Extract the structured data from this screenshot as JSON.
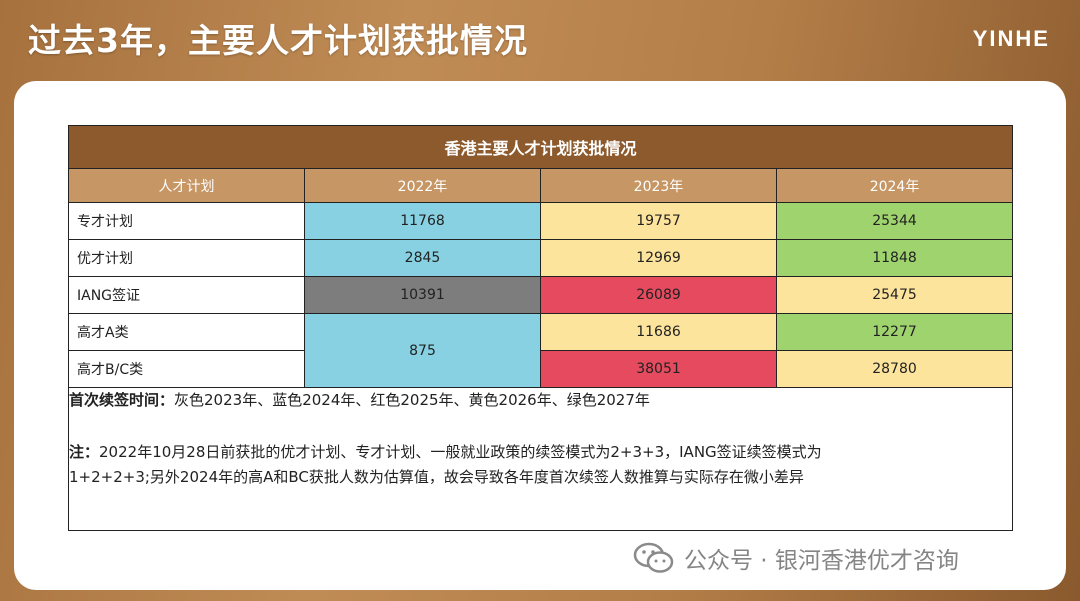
{
  "slide": {
    "title": "过去3年，主要人才计划获批情况",
    "logo": "YINHE"
  },
  "table": {
    "title": "香港主要人才计划获批情况",
    "headers": [
      "人才计划",
      "2022年",
      "2023年",
      "2024年"
    ],
    "rows": [
      {
        "label": "专才计划",
        "v2022": "11768",
        "v2023": "19757",
        "v2024": "25344"
      },
      {
        "label": "优才计划",
        "v2022": "2845",
        "v2023": "12969",
        "v2024": "11848"
      },
      {
        "label": "IANG签证",
        "v2022": "10391",
        "v2023": "26089",
        "v2024": "25475"
      },
      {
        "label": "高才A类",
        "v2022": "875",
        "v2023": "11686",
        "v2024": "12277"
      },
      {
        "label": "高才B/C类",
        "v2023": "38051",
        "v2024": "28780"
      }
    ],
    "colors": {
      "gray": "#7d7d7d",
      "blue": "#88d1e2",
      "red": "#e64a5e",
      "yellow": "#fde49c",
      "green": "#9fd36d"
    },
    "notes": {
      "renewal_label": "首次续签时间：",
      "renewal_text": "灰色2023年、蓝色2024年、红色2025年、黄色2026年、绿色2027年",
      "note_label": "注：",
      "note_line1": "2022年10月28日前获批的优才计划、专才计划、一般就业政策的续签模式为2+3+3，IANG签证续签模式为",
      "note_line2": "1+2+2+3;另外2024年的高A和BC获批人数为估算值，故会导致各年度首次续签人数推算与实际存在微小差异"
    }
  },
  "watermark": {
    "text": "公众号 · 银河香港优才咨询",
    "icon": "wechat-icon"
  }
}
